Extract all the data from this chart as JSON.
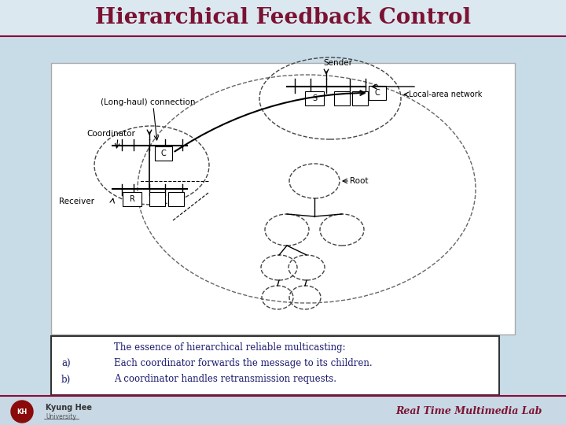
{
  "title": "Hierarchical Feedback Control",
  "title_color": "#7B1232",
  "title_fontsize": 20,
  "slide_bg": "#C8DCE8",
  "title_bg": "#DCE8F0",
  "text_color": "#1A1A6E",
  "footer_text": "Real Time Multimedia Lab",
  "footer_color": "#7B1232",
  "labels": {
    "sender": "Sender",
    "long_haul": "(Long-haul) connection",
    "coordinator": "Coordinator",
    "local_area": "Local-area network",
    "receiver": "Receiver",
    "root": "Root",
    "s_label": "S",
    "c_label": "C",
    "r_label": "R"
  },
  "text_lines": [
    "The essence of hierarchical reliable multicasting:",
    "Each coordinator forwards the message to its children.",
    "A coordinator handles retransmission requests."
  ],
  "text_labels_ab": [
    "a)",
    "b)"
  ]
}
